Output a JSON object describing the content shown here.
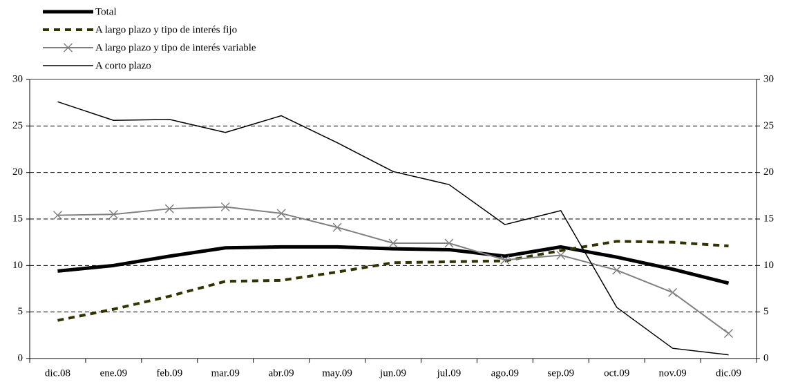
{
  "chart_data": {
    "type": "line",
    "categories": [
      "dic.08",
      "ene.09",
      "feb.09",
      "mar.09",
      "abr.09",
      "may.09",
      "jun.09",
      "jul.09",
      "ago.09",
      "sep.09",
      "oct.09",
      "nov.09",
      "dic.09"
    ],
    "series": [
      {
        "name": "Total",
        "color": "#000000",
        "linewidth": 5,
        "dash": false,
        "marker": null,
        "values": [
          9.4,
          10.0,
          11.0,
          11.9,
          12.0,
          12.0,
          11.8,
          11.7,
          11.0,
          12.0,
          10.9,
          9.6,
          8.1
        ]
      },
      {
        "name": "A largo plazo y tipo de interés fijo",
        "color": "#333300",
        "linewidth": 4,
        "dash": true,
        "marker": null,
        "values": [
          4.1,
          5.3,
          6.7,
          8.3,
          8.4,
          9.3,
          10.3,
          10.4,
          10.5,
          11.6,
          12.6,
          12.5,
          12.1
        ]
      },
      {
        "name": "A largo plazo y tipo de interés variable",
        "color": "#808080",
        "linewidth": 2,
        "dash": false,
        "marker": "x",
        "values": [
          15.4,
          15.5,
          16.1,
          16.3,
          15.6,
          14.1,
          12.4,
          12.4,
          10.6,
          11.1,
          9.5,
          7.1,
          2.7
        ]
      },
      {
        "name": "A corto plazo",
        "color": "#000000",
        "linewidth": 1.5,
        "dash": false,
        "marker": null,
        "values": [
          27.6,
          25.6,
          25.7,
          24.3,
          26.1,
          23.2,
          20.1,
          18.7,
          14.4,
          15.9,
          5.5,
          1.1,
          0.4
        ]
      }
    ],
    "ylim": [
      0,
      30
    ],
    "yticks": [
      0,
      5,
      10,
      15,
      20,
      25,
      30
    ],
    "y2lim": [
      0,
      30
    ],
    "y2ticks": [
      0,
      5,
      10,
      15,
      20,
      25,
      30
    ],
    "grid": true
  }
}
